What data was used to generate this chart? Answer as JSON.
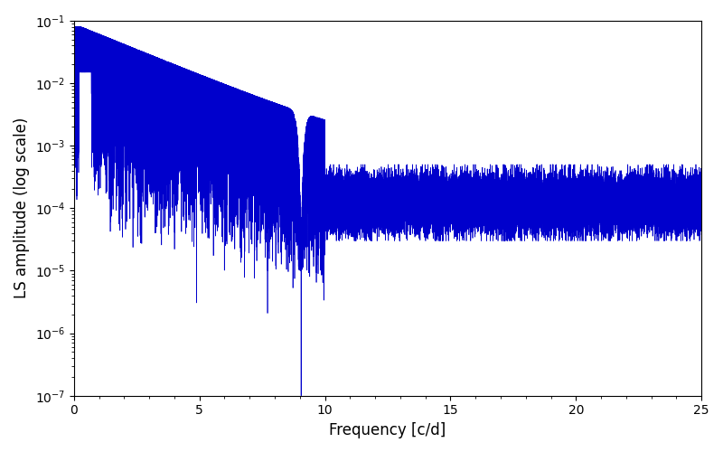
{
  "title": "",
  "xlabel": "Frequency [c/d]",
  "ylabel": "LS amplitude (log scale)",
  "xlim": [
    0,
    25
  ],
  "ylim": [
    1e-07,
    0.1
  ],
  "line_color": "#0000cc",
  "line_width": 0.5,
  "background_color": "#ffffff",
  "figsize": [
    8.0,
    5.0
  ],
  "dpi": 100
}
